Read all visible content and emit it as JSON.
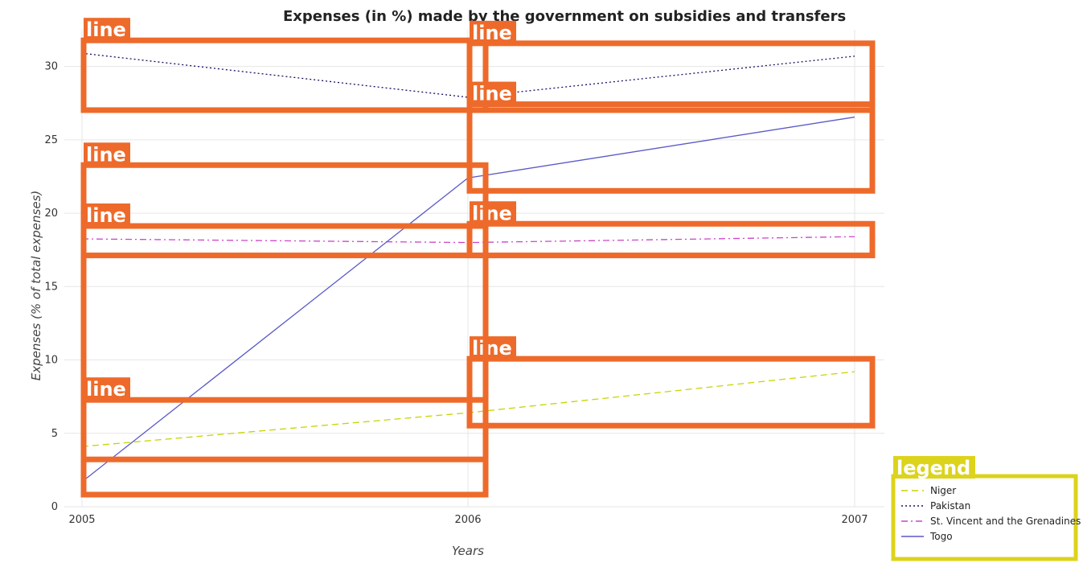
{
  "chart_data": {
    "type": "line",
    "title": "Expenses (in %) made by the government on subsidies and transfers",
    "xlabel": "Years",
    "ylabel": "Expenses (% of total expenses)",
    "categories": [
      "2005",
      "2006",
      "2007"
    ],
    "ylim": [
      0,
      32.5
    ],
    "yticks": [
      0,
      5,
      10,
      15,
      20,
      25,
      30
    ],
    "grid": true,
    "legend_position": "bottom-right",
    "series": [
      {
        "name": "Niger",
        "color": "#c8d400",
        "dash": "dashed",
        "values": [
          4.1,
          6.4,
          9.2
        ]
      },
      {
        "name": "Pakistan",
        "color": "#1a1060",
        "dash": "dotted",
        "values": [
          30.9,
          27.9,
          30.7
        ]
      },
      {
        "name": "St. Vincent and the Grenadines",
        "color": "#cc44cc",
        "dash": "dashdot",
        "values": [
          18.25,
          18.0,
          18.4
        ]
      },
      {
        "name": "Togo",
        "color": "#5a5ac8",
        "dash": "solid",
        "values": [
          1.7,
          22.4,
          26.55
        ]
      }
    ]
  },
  "annotations": {
    "marker_label": "line",
    "legend_label": "legend"
  }
}
